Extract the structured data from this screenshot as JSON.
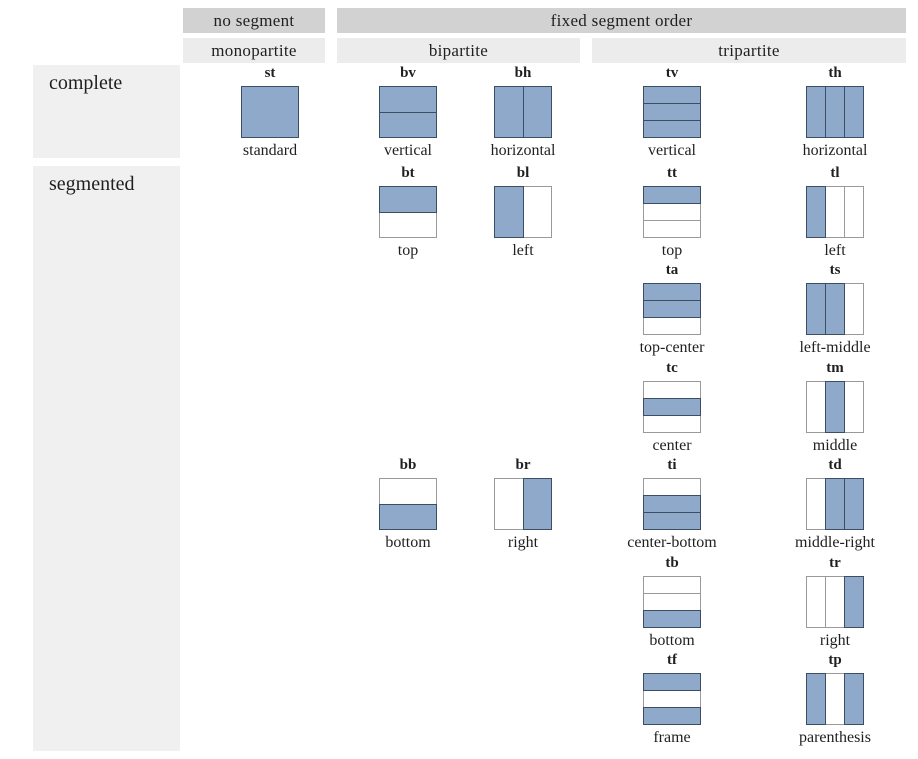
{
  "header": {
    "no_segment": "no segment",
    "fixed_segment_order": "fixed segment order",
    "monopartite": "monopartite",
    "bipartite": "bipartite",
    "tripartite": "tripartite"
  },
  "row_labels": {
    "complete": "complete",
    "segmented": "segmented"
  },
  "colors": {
    "fill": "#8EA9C9",
    "seg_border_filled": "#3D4D63",
    "seg_border_empty": "#9A9A9A",
    "header_dark": "#D2D2D2",
    "header_light": "#ECECEC",
    "label_bg": "#F0F0F0"
  },
  "cells": [
    {
      "code": "st",
      "caption": "standard",
      "row": 0,
      "col": "mono",
      "orientation": "rows",
      "fills": [
        1
      ]
    },
    {
      "code": "bv",
      "caption": "vertical",
      "row": 0,
      "col": "bi1",
      "orientation": "rows",
      "fills": [
        1,
        1
      ]
    },
    {
      "code": "bh",
      "caption": "horizontal",
      "row": 0,
      "col": "bi2",
      "orientation": "cols",
      "fills": [
        1,
        1
      ]
    },
    {
      "code": "tv",
      "caption": "vertical",
      "row": 0,
      "col": "tri1",
      "orientation": "rows",
      "fills": [
        1,
        1,
        1
      ]
    },
    {
      "code": "th",
      "caption": "horizontal",
      "row": 0,
      "col": "tri2",
      "orientation": "cols",
      "fills": [
        1,
        1,
        1
      ]
    },
    {
      "code": "bt",
      "caption": "top",
      "row": 1,
      "col": "bi1",
      "orientation": "rows",
      "fills": [
        1,
        0
      ]
    },
    {
      "code": "bl",
      "caption": "left",
      "row": 1,
      "col": "bi2",
      "orientation": "cols",
      "fills": [
        1,
        0
      ]
    },
    {
      "code": "tt",
      "caption": "top",
      "row": 1,
      "col": "tri1",
      "orientation": "rows",
      "fills": [
        1,
        0,
        0
      ]
    },
    {
      "code": "tl",
      "caption": "left",
      "row": 1,
      "col": "tri2",
      "orientation": "cols",
      "fills": [
        1,
        0,
        0
      ]
    },
    {
      "code": "ta",
      "caption": "top-center",
      "row": 2,
      "col": "tri1",
      "orientation": "rows",
      "fills": [
        1,
        1,
        0
      ]
    },
    {
      "code": "ts",
      "caption": "left-middle",
      "row": 2,
      "col": "tri2",
      "orientation": "cols",
      "fills": [
        1,
        1,
        0
      ]
    },
    {
      "code": "tc",
      "caption": "center",
      "row": 3,
      "col": "tri1",
      "orientation": "rows",
      "fills": [
        0,
        1,
        0
      ]
    },
    {
      "code": "tm",
      "caption": "middle",
      "row": 3,
      "col": "tri2",
      "orientation": "cols",
      "fills": [
        0,
        1,
        0
      ]
    },
    {
      "code": "bb",
      "caption": "bottom",
      "row": 4,
      "col": "bi1",
      "orientation": "rows",
      "fills": [
        0,
        1
      ]
    },
    {
      "code": "br",
      "caption": "right",
      "row": 4,
      "col": "bi2",
      "orientation": "cols",
      "fills": [
        0,
        1
      ]
    },
    {
      "code": "ti",
      "caption": "center-bottom",
      "row": 4,
      "col": "tri1",
      "orientation": "rows",
      "fills": [
        0,
        1,
        1
      ]
    },
    {
      "code": "td",
      "caption": "middle-right",
      "row": 4,
      "col": "tri2",
      "orientation": "cols",
      "fills": [
        0,
        1,
        1
      ]
    },
    {
      "code": "tb",
      "caption": "bottom",
      "row": 5,
      "col": "tri1",
      "orientation": "rows",
      "fills": [
        0,
        0,
        1
      ]
    },
    {
      "code": "tr",
      "caption": "right",
      "row": 5,
      "col": "tri2",
      "orientation": "cols",
      "fills": [
        0,
        0,
        1
      ]
    },
    {
      "code": "tf",
      "caption": "frame",
      "row": 6,
      "col": "tri1",
      "orientation": "rows",
      "fills": [
        1,
        0,
        1
      ]
    },
    {
      "code": "tp",
      "caption": "parenthesis",
      "row": 6,
      "col": "tri2",
      "orientation": "cols",
      "fills": [
        1,
        0,
        1
      ]
    }
  ]
}
